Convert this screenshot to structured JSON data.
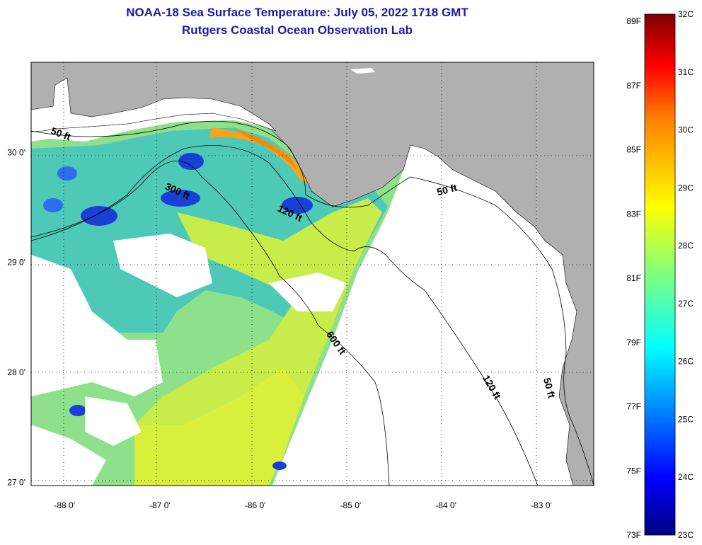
{
  "title": "NOAA-18 Sea Surface Temperature:  July 05, 2022 1718 GMT",
  "subtitle": "Rutgers Coastal Ocean Observation Lab",
  "map": {
    "lon_range": [
      -88.35,
      -82.45
    ],
    "lat_range": [
      26.97,
      30.82
    ],
    "lon_ticks": [
      {
        "value": -88,
        "label": "-88 0'"
      },
      {
        "value": -87,
        "label": "-87 0'"
      },
      {
        "value": -86,
        "label": "-86 0'"
      },
      {
        "value": -85,
        "label": "-85 0'"
      },
      {
        "value": -84,
        "label": "-84 0'"
      },
      {
        "value": -83,
        "label": "-83 0'"
      }
    ],
    "lat_ticks": [
      {
        "value": 30,
        "label": "30 0'"
      },
      {
        "value": 29,
        "label": "29 0'"
      },
      {
        "value": 28,
        "label": "28 0'"
      },
      {
        "value": 27,
        "label": "27 0'"
      }
    ],
    "grid": true,
    "land_color": "#b0b0b0",
    "ocean_color": "#ffffff",
    "contour_labels": [
      {
        "text": "50 ft",
        "lon": -88.05,
        "lat": 30.14,
        "angle": 20
      },
      {
        "text": "300 ft",
        "lon": -86.83,
        "lat": 29.62,
        "angle": 25
      },
      {
        "text": "120 ft",
        "lon": -85.65,
        "lat": 29.42,
        "angle": 25
      },
      {
        "text": "50 ft",
        "lon": -83.98,
        "lat": 29.63,
        "angle": -15
      },
      {
        "text": "600 ft",
        "lon": -85.18,
        "lat": 28.25,
        "angle": 55
      },
      {
        "text": "120 ft",
        "lon": -83.55,
        "lat": 27.85,
        "angle": 60
      },
      {
        "text": "50 ft",
        "lon": -82.95,
        "lat": 27.85,
        "angle": 75
      }
    ]
  },
  "colorbar": {
    "fahrenheit_labels": [
      "89F",
      "87F",
      "85F",
      "83F",
      "81F",
      "79F",
      "77F",
      "75F",
      "73F"
    ],
    "celsius_labels": [
      "32C",
      "31C",
      "30C",
      "29C",
      "28C",
      "27C",
      "26C",
      "25C",
      "24C",
      "23C"
    ],
    "colormap": [
      "#00007f",
      "#0000ff",
      "#007fff",
      "#00ffff",
      "#7fff7f",
      "#ffff00",
      "#ff7f00",
      "#ff0000",
      "#7f0000"
    ]
  }
}
